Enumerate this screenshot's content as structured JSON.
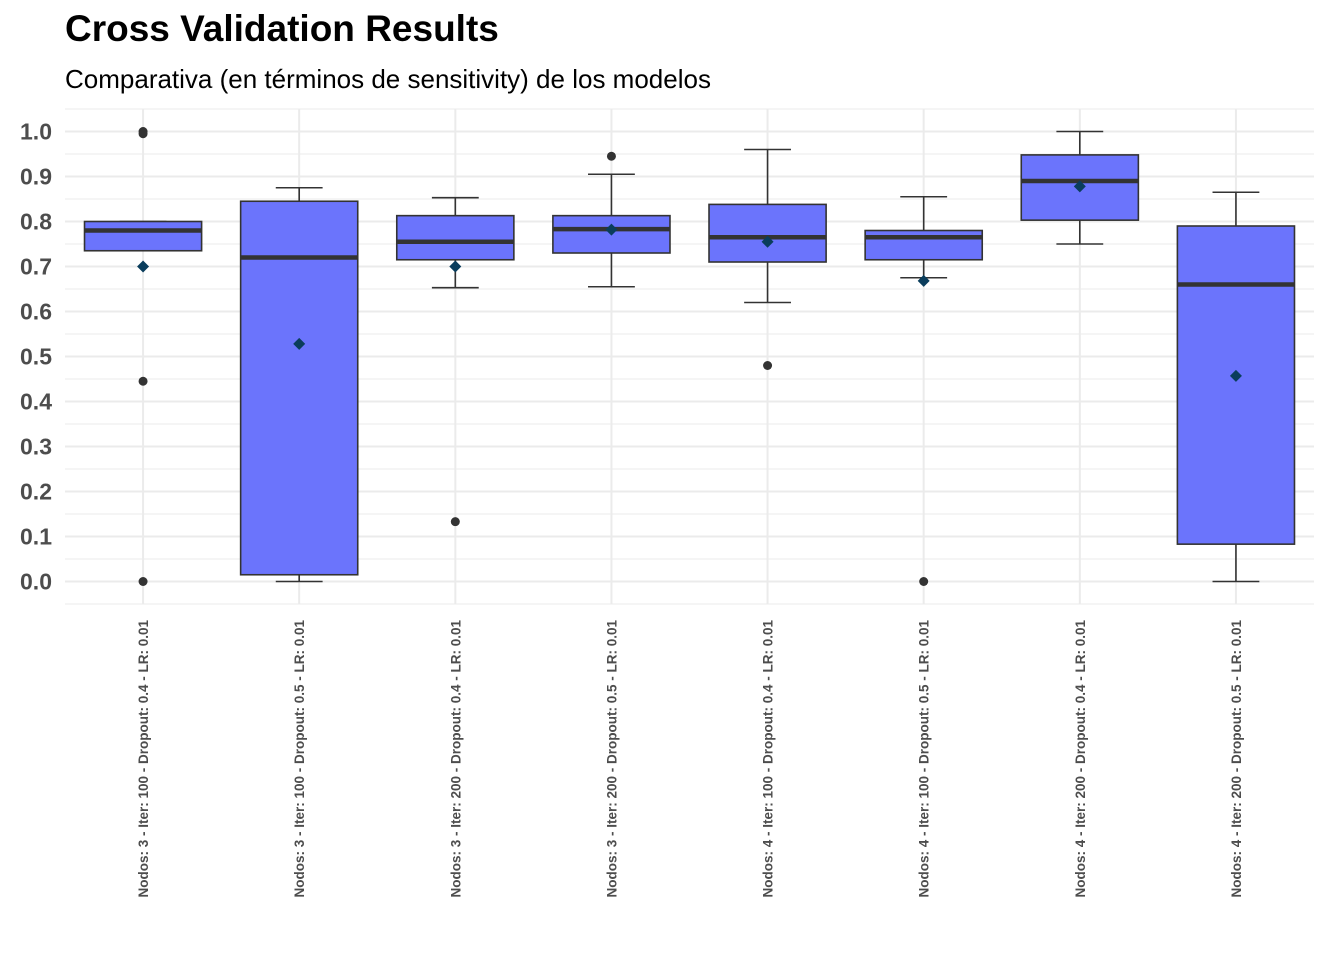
{
  "chart_data": {
    "type": "box",
    "title": "Cross Validation Results",
    "subtitle": "Comparativa (en términos de sensitivity) de los modelos",
    "xlabel": "",
    "ylabel": "",
    "ylim": [
      -0.05,
      1.05
    ],
    "yticks": [
      "0.0",
      "0.1",
      "0.2",
      "0.3",
      "0.4",
      "0.5",
      "0.6",
      "0.7",
      "0.8",
      "0.9",
      "1.0"
    ],
    "grid": true,
    "legend": "none",
    "colors": {
      "box_fill": "#6b74fc",
      "box_stroke": "#333333",
      "mean_marker": "#0a3d5c",
      "outlier": "#333333",
      "grid": "#ebebeb"
    },
    "categories": [
      "Nodos: 3 - Iter: 100 - Dropout: 0.4 - LR: 0.01",
      "Nodos: 3 - Iter: 100 - Dropout: 0.5 - LR: 0.01",
      "Nodos: 3 - Iter: 200 - Dropout: 0.4 - LR: 0.01",
      "Nodos: 3 - Iter: 200 - Dropout: 0.5 - LR: 0.01",
      "Nodos: 4 - Iter: 100 - Dropout: 0.4 - LR: 0.01",
      "Nodos: 4 - Iter: 100 - Dropout: 0.5 - LR: 0.01",
      "Nodos: 4 - Iter: 200 - Dropout: 0.4 - LR: 0.01",
      "Nodos: 4 - Iter: 200 - Dropout: 0.5 - LR: 0.01"
    ],
    "boxes": [
      {
        "whisker_low": 0.735,
        "q1": 0.735,
        "median": 0.78,
        "q3": 0.8,
        "whisker_high": 0.8,
        "mean": 0.7,
        "outliers": [
          1.0,
          0.995,
          0.445,
          0.0
        ]
      },
      {
        "whisker_low": 0.0,
        "q1": 0.015,
        "median": 0.72,
        "q3": 0.845,
        "whisker_high": 0.875,
        "mean": 0.528,
        "outliers": []
      },
      {
        "whisker_low": 0.653,
        "q1": 0.715,
        "median": 0.755,
        "q3": 0.813,
        "whisker_high": 0.853,
        "mean": 0.7,
        "outliers": [
          0.133
        ]
      },
      {
        "whisker_low": 0.655,
        "q1": 0.73,
        "median": 0.783,
        "q3": 0.813,
        "whisker_high": 0.905,
        "mean": 0.782,
        "outliers": [
          0.945
        ]
      },
      {
        "whisker_low": 0.62,
        "q1": 0.71,
        "median": 0.765,
        "q3": 0.838,
        "whisker_high": 0.96,
        "mean": 0.755,
        "outliers": [
          0.48
        ]
      },
      {
        "whisker_low": 0.675,
        "q1": 0.715,
        "median": 0.765,
        "q3": 0.78,
        "whisker_high": 0.855,
        "mean": 0.668,
        "outliers": [
          0.0
        ]
      },
      {
        "whisker_low": 0.75,
        "q1": 0.803,
        "median": 0.89,
        "q3": 0.948,
        "whisker_high": 1.0,
        "mean": 0.878,
        "outliers": []
      },
      {
        "whisker_low": 0.0,
        "q1": 0.083,
        "median": 0.66,
        "q3": 0.79,
        "whisker_high": 0.865,
        "mean": 0.457,
        "outliers": []
      }
    ]
  }
}
